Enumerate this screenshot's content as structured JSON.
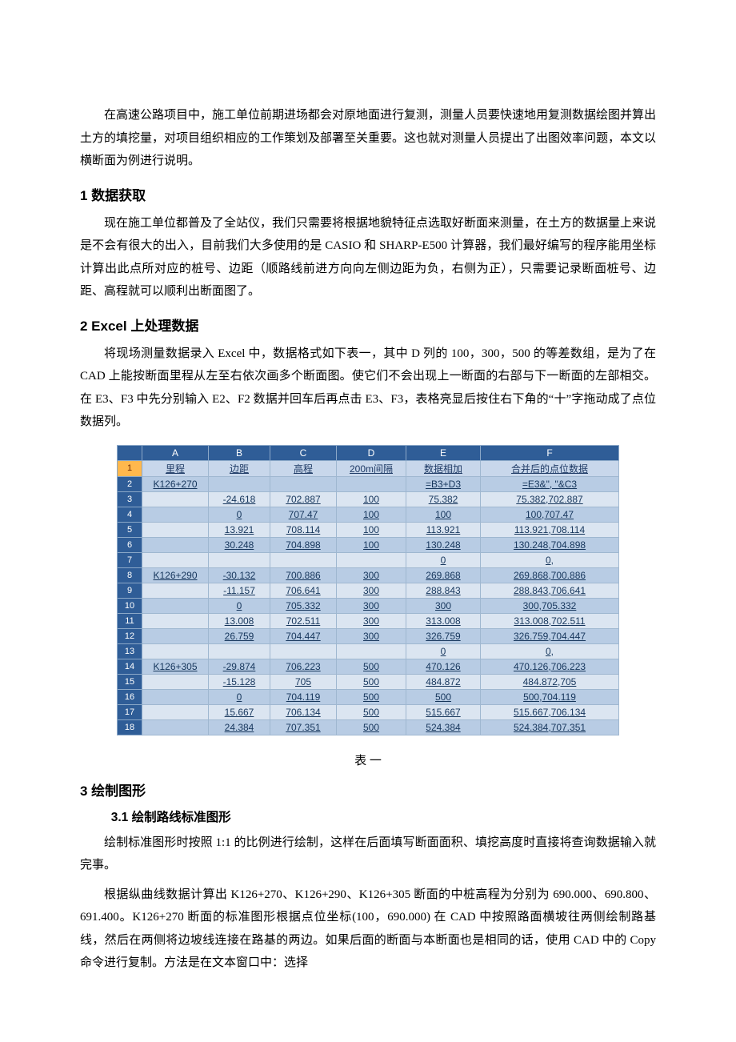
{
  "intro": {
    "p1": "在高速公路项目中，施工单位前期进场都会对原地面进行复测，测量人员要快速地用复测数据绘图并算出土方的填挖量，对项目组织相应的工作策划及部署至关重要。这也就对测量人员提出了出图效率问题，本文以横断面为例进行说明。"
  },
  "s1": {
    "title": "1 数据获取",
    "p1": "现在施工单位都普及了全站仪，我们只需要将根据地貌特征点选取好断面来测量，在土方的数据量上来说是不会有很大的出入，目前我们大多使用的是 CASIO 和 SHARP-E500 计算器，我们最好编写的程序能用坐标计算出此点所对应的桩号、边距（顺路线前进方向向左侧边距为负，右侧为正），只需要记录断面桩号、边距、高程就可以顺利出断面图了。"
  },
  "s2": {
    "title": "2 Excel 上处理数据",
    "p1": "将现场测量数据录入 Excel 中，数据格式如下表一，其中 D 列的 100，300，500 的等差数组，是为了在 CAD 上能按断面里程从左至右依次画多个断面图。使它们不会出现上一断面的右部与下一断面的左部相交。在 E3、F3 中先分别输入 E2、F2 数据并回车后再点击 E3、F3，表格亮显后按住右下角的“十”字拖动成了点位数据列。"
  },
  "table": {
    "headers": [
      "A",
      "B",
      "C",
      "D",
      "E",
      "F"
    ],
    "subheaders": [
      "里程",
      "边距",
      "高程",
      "200m间隔",
      "数据相加",
      "合并后的点位数据"
    ],
    "rows": [
      {
        "n": "2",
        "c": [
          "K126+270",
          "",
          "",
          "",
          "=B3+D3",
          "=E3&\", \"&C3"
        ]
      },
      {
        "n": "3",
        "c": [
          "",
          "-24.618",
          "702.887",
          "100",
          "75.382",
          "75.382,702.887"
        ]
      },
      {
        "n": "4",
        "c": [
          "",
          "0",
          "707.47",
          "100",
          "100",
          "100,707.47"
        ]
      },
      {
        "n": "5",
        "c": [
          "",
          "13.921",
          "708.114",
          "100",
          "113.921",
          "113.921,708.114"
        ]
      },
      {
        "n": "6",
        "c": [
          "",
          "30.248",
          "704.898",
          "100",
          "130.248",
          "130.248,704.898"
        ]
      },
      {
        "n": "7",
        "c": [
          "",
          "",
          "",
          "",
          "0",
          "0,"
        ]
      },
      {
        "n": "8",
        "c": [
          "K126+290",
          "-30.132",
          "700.886",
          "300",
          "269.868",
          "269.868,700.886"
        ]
      },
      {
        "n": "9",
        "c": [
          "",
          "-11.157",
          "706.641",
          "300",
          "288.843",
          "288.843,706.641"
        ]
      },
      {
        "n": "10",
        "c": [
          "",
          "0",
          "705.332",
          "300",
          "300",
          "300,705.332"
        ]
      },
      {
        "n": "11",
        "c": [
          "",
          "13.008",
          "702.511",
          "300",
          "313.008",
          "313.008,702.511"
        ]
      },
      {
        "n": "12",
        "c": [
          "",
          "26.759",
          "704.447",
          "300",
          "326.759",
          "326.759,704.447"
        ]
      },
      {
        "n": "13",
        "c": [
          "",
          "",
          "",
          "",
          "0",
          "0,"
        ]
      },
      {
        "n": "14",
        "c": [
          "K126+305",
          "-29.874",
          "706.223",
          "500",
          "470.126",
          "470.126,706.223"
        ]
      },
      {
        "n": "15",
        "c": [
          "",
          "-15.128",
          "705",
          "500",
          "484.872",
          "484.872,705"
        ]
      },
      {
        "n": "16",
        "c": [
          "",
          "0",
          "704.119",
          "500",
          "500",
          "500,704.119"
        ]
      },
      {
        "n": "17",
        "c": [
          "",
          "15.667",
          "706.134",
          "500",
          "515.667",
          "515.667,706.134"
        ]
      },
      {
        "n": "18",
        "c": [
          "",
          "24.384",
          "707.351",
          "500",
          "524.384",
          "524.384,707.351"
        ]
      }
    ],
    "colWidths": [
      "70",
      "64",
      "70",
      "74",
      "80",
      "160"
    ],
    "caption": "表 一"
  },
  "s3": {
    "title": "3 绘制图形",
    "s31_title": "3.1 绘制路线标准图形",
    "p1": "绘制标准图形时按照 1:1 的比例进行绘制，这样在后面填写断面面积、填挖高度时直接将查询数据输入就完事。",
    "p2": "根据纵曲线数据计算出 K126+270、K126+290、K126+305 断面的中桩高程为分别为 690.000、690.800、691.400。K126+270 断面的标准图形根据点位坐标(100，690.000) 在 CAD 中按照路面横坡往两侧绘制路基线，然后在两侧将边坡线连接在路基的两边。如果后面的断面与本断面也是相同的话，使用 CAD 中的 Copy 命令进行复制。方法是在文本窗口中：选择"
  },
  "styles": {
    "header_bg": "#2f5d97",
    "odd_bg": "#dbe5f1",
    "even_bg": "#b8cce4",
    "border": "#9fb7d0"
  }
}
